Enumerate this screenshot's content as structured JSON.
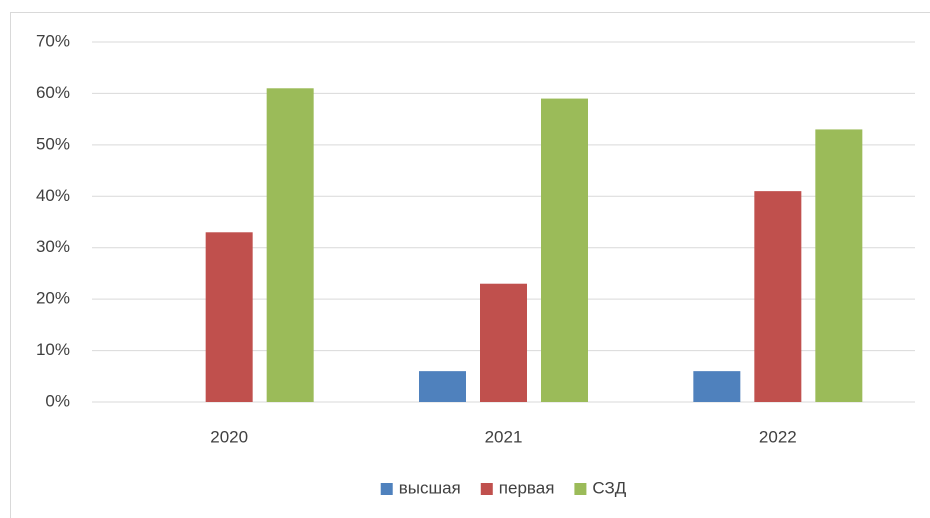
{
  "chart_data": {
    "type": "bar",
    "categories": [
      "2020",
      "2021",
      "2022"
    ],
    "series": [
      {
        "name": "высшая",
        "color": "#4f81bd",
        "values": [
          0,
          6,
          6
        ]
      },
      {
        "name": "первая",
        "color": "#c0504d",
        "values": [
          33,
          23,
          41
        ]
      },
      {
        "name": "СЗД",
        "color": "#9bbb59",
        "values": [
          61,
          59,
          53
        ]
      }
    ],
    "ylim": [
      0,
      70
    ],
    "yticks": [
      {
        "value": 0,
        "label": "0%"
      },
      {
        "value": 10,
        "label": "10%"
      },
      {
        "value": 20,
        "label": "20%"
      },
      {
        "value": 30,
        "label": "30%"
      },
      {
        "value": 40,
        "label": "40%"
      },
      {
        "value": 50,
        "label": "50%"
      },
      {
        "value": 60,
        "label": "60%"
      },
      {
        "value": 70,
        "label": "70%"
      }
    ],
    "grid": true,
    "legend": "bottom"
  }
}
